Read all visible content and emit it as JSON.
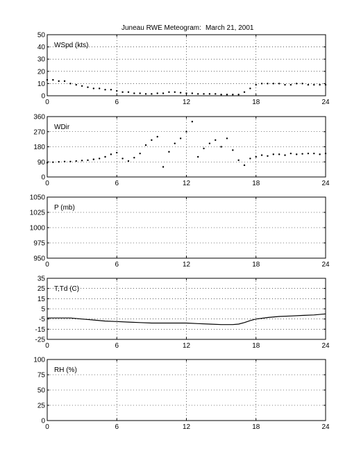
{
  "title_parts": [
    "Juneau RWE Meteogram:",
    "March 21, 2001"
  ],
  "colors": {
    "axis": "#000000",
    "grid": "#000000",
    "data": "#000000",
    "background": "#ffffff"
  },
  "chart_data": [
    {
      "type": "scatter",
      "panel_label": "WSpd (kts)",
      "xlim": [
        0,
        24
      ],
      "ylim": [
        0,
        50
      ],
      "xticks": [
        0,
        6,
        12,
        18,
        24
      ],
      "yticks": [
        0,
        10,
        20,
        30,
        40,
        50
      ],
      "grid": true,
      "x": [
        0,
        0.5,
        1,
        1.5,
        2,
        2.5,
        3,
        3.5,
        4,
        4.5,
        5,
        5.5,
        6,
        6.5,
        7,
        7.5,
        8,
        8.5,
        9,
        9.5,
        10,
        10.5,
        11,
        11.5,
        12,
        12.5,
        13,
        13.5,
        14,
        14.5,
        15,
        15.5,
        16,
        16.5,
        17,
        17.5,
        18,
        18.5,
        19,
        19.5,
        20,
        20.5,
        21,
        21.5,
        22,
        22.5,
        23,
        23.5,
        24
      ],
      "y": [
        13,
        13,
        12,
        12,
        10,
        9,
        8,
        7,
        6,
        6,
        5,
        5,
        4,
        3,
        3,
        2,
        2,
        1.5,
        1.5,
        2,
        2,
        3,
        3,
        2.5,
        2,
        2,
        1.5,
        1.5,
        1.5,
        1.5,
        1,
        1,
        1,
        1,
        3,
        6,
        9,
        10,
        10,
        10,
        10,
        9,
        9,
        10,
        10,
        9,
        9,
        9,
        9
      ]
    },
    {
      "type": "scatter",
      "panel_label": "WDir",
      "xlim": [
        0,
        24
      ],
      "ylim": [
        0,
        360
      ],
      "xticks": [
        0,
        6,
        12,
        18,
        24
      ],
      "yticks": [
        0,
        90,
        180,
        270,
        360
      ],
      "grid": true,
      "x": [
        0,
        0.5,
        1,
        1.5,
        2,
        2.5,
        3,
        3.5,
        4,
        4.5,
        5,
        5.5,
        6,
        6.5,
        7,
        7.5,
        8,
        8.5,
        9,
        9.5,
        10,
        10.5,
        11,
        11.5,
        12,
        12.5,
        13,
        13.5,
        14,
        14.5,
        15,
        15.5,
        16,
        16.5,
        17,
        17.5,
        18,
        18.5,
        19,
        19.5,
        20,
        20.5,
        21,
        21.5,
        22,
        22.5,
        23,
        23.5,
        24
      ],
      "y": [
        85,
        88,
        90,
        92,
        92,
        95,
        98,
        100,
        105,
        110,
        120,
        135,
        145,
        110,
        95,
        115,
        140,
        190,
        220,
        240,
        60,
        150,
        200,
        230,
        270,
        330,
        120,
        170,
        200,
        220,
        180,
        230,
        160,
        100,
        70,
        110,
        120,
        130,
        125,
        135,
        135,
        130,
        140,
        135,
        138,
        140,
        140,
        135,
        140
      ]
    },
    {
      "type": "line",
      "panel_label": "P (mb)",
      "xlim": [
        0,
        24
      ],
      "ylim": [
        950,
        1050
      ],
      "xticks": [
        0,
        6,
        12,
        18,
        24
      ],
      "yticks": [
        950,
        975,
        1000,
        1025,
        1050
      ],
      "grid": true,
      "x": [],
      "y": []
    },
    {
      "type": "line",
      "panel_label": "T,Td (C)",
      "xlim": [
        0,
        24
      ],
      "ylim": [
        -25,
        35
      ],
      "xticks": [
        0,
        6,
        12,
        18,
        24
      ],
      "yticks": [
        -25,
        -15,
        -5,
        5,
        15,
        25,
        35
      ],
      "grid": true,
      "x": [
        0,
        1,
        2,
        3,
        4,
        5,
        6,
        7,
        8,
        9,
        10,
        11,
        12,
        13,
        14,
        15,
        16,
        16.5,
        17,
        17.5,
        18,
        19,
        20,
        21,
        22,
        23,
        24
      ],
      "y": [
        -4,
        -4,
        -4,
        -5,
        -6,
        -7,
        -7.5,
        -8,
        -8.5,
        -9,
        -9,
        -9,
        -9,
        -9.5,
        -10,
        -10.5,
        -10.5,
        -10,
        -8.5,
        -6.5,
        -5,
        -3.5,
        -2.5,
        -2,
        -1.5,
        -1,
        0
      ]
    },
    {
      "type": "line",
      "panel_label": "RH (%)",
      "xlim": [
        0,
        24
      ],
      "ylim": [
        0,
        100
      ],
      "xticks": [
        0,
        6,
        12,
        18,
        24
      ],
      "yticks": [
        0,
        25,
        50,
        75,
        100
      ],
      "grid": true,
      "x": [],
      "y": []
    }
  ]
}
